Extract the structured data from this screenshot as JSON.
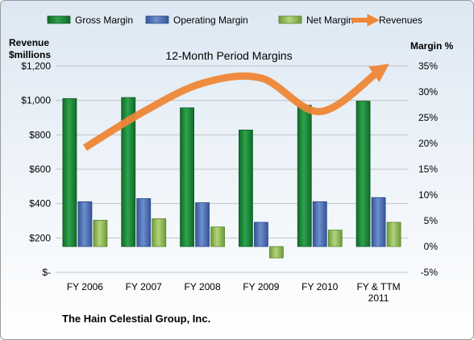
{
  "chart_data": {
    "type": "bar",
    "title": "12-Month Period Margins",
    "y_left_label_lines": [
      "Revenue",
      "$millions"
    ],
    "y_right_label": "Margin %",
    "categories": [
      [
        "FY 2006"
      ],
      [
        "FY 2007"
      ],
      [
        "FY 2008"
      ],
      [
        "FY 2009"
      ],
      [
        "FY 2010"
      ],
      [
        "FY & TTM",
        "2011"
      ]
    ],
    "y_left_ticks": [
      "$-",
      "$200",
      "$400",
      "$600",
      "$800",
      "$1,000",
      "$1,200"
    ],
    "y_left_range": [
      0,
      1200
    ],
    "y_right_ticks": [
      "-5%",
      "0%",
      "5%",
      "10%",
      "15%",
      "20%",
      "25%",
      "30%",
      "35%"
    ],
    "y_right_range": [
      -5,
      35
    ],
    "series": [
      {
        "name": "Gross Margin",
        "kind": "bar",
        "axis": "right",
        "color": "#1f8a3c",
        "values": [
          28.7,
          28.9,
          26.9,
          22.6,
          27.4,
          28.2
        ]
      },
      {
        "name": "Operating Margin",
        "kind": "bar",
        "axis": "right",
        "color": "#4f74b8",
        "values": [
          8.7,
          9.3,
          8.5,
          4.7,
          8.7,
          9.5
        ]
      },
      {
        "name": "Net Margin",
        "kind": "bar",
        "axis": "right",
        "color": "#93b95a",
        "values": [
          5.1,
          5.4,
          3.8,
          -2.2,
          3.2,
          4.7
        ]
      },
      {
        "name": "Revenues",
        "kind": "line",
        "axis": "left",
        "color": "#ef8636",
        "values": [
          725,
          935,
          1100,
          1130,
          935,
          1170
        ]
      }
    ],
    "grid": true,
    "legend_position": "top"
  },
  "footer": {
    "company": "The Hain Celestial Group, Inc."
  }
}
